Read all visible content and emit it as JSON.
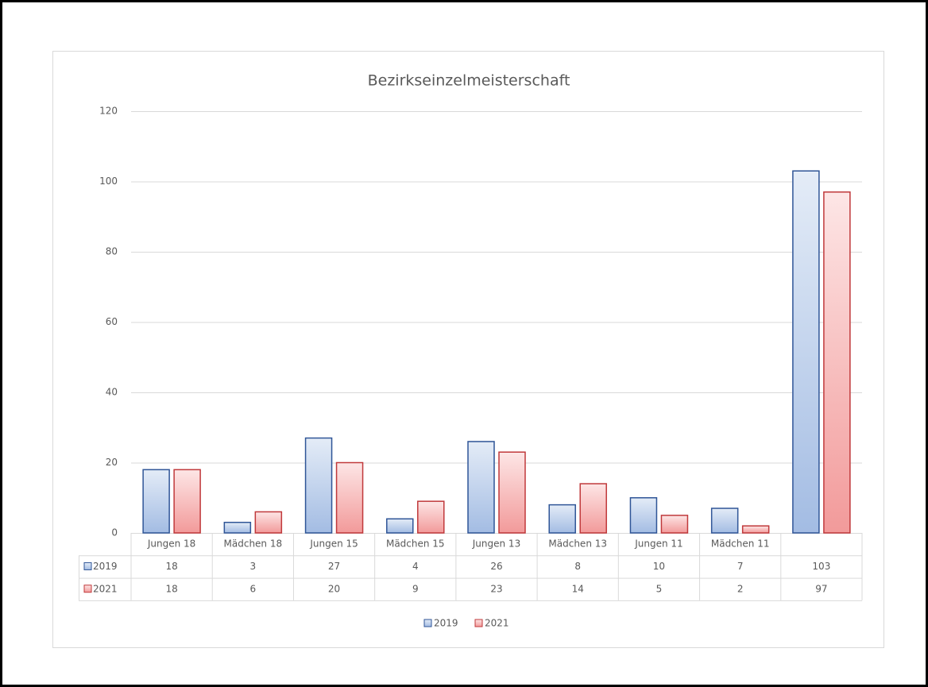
{
  "chart_data": {
    "type": "bar",
    "title": "Bezirkseinzelmeisterschaft",
    "categories": [
      "Jungen 18",
      "Mädchen 18",
      "Jungen 15",
      "Mädchen 15",
      "Jungen 13",
      "Mädchen 13",
      "Jungen 11",
      "Mädchen 11",
      null
    ],
    "series": [
      {
        "name": "2019",
        "color": "#2f5597",
        "values": [
          18,
          3,
          27,
          4,
          26,
          8,
          10,
          7,
          103
        ]
      },
      {
        "name": "2021",
        "color": "#c0393b",
        "values": [
          18,
          6,
          20,
          9,
          23,
          14,
          5,
          2,
          97
        ]
      }
    ],
    "ylim": [
      0,
      120
    ],
    "yticks": [
      0,
      20,
      40,
      60,
      80,
      100,
      120
    ],
    "grid": true
  }
}
